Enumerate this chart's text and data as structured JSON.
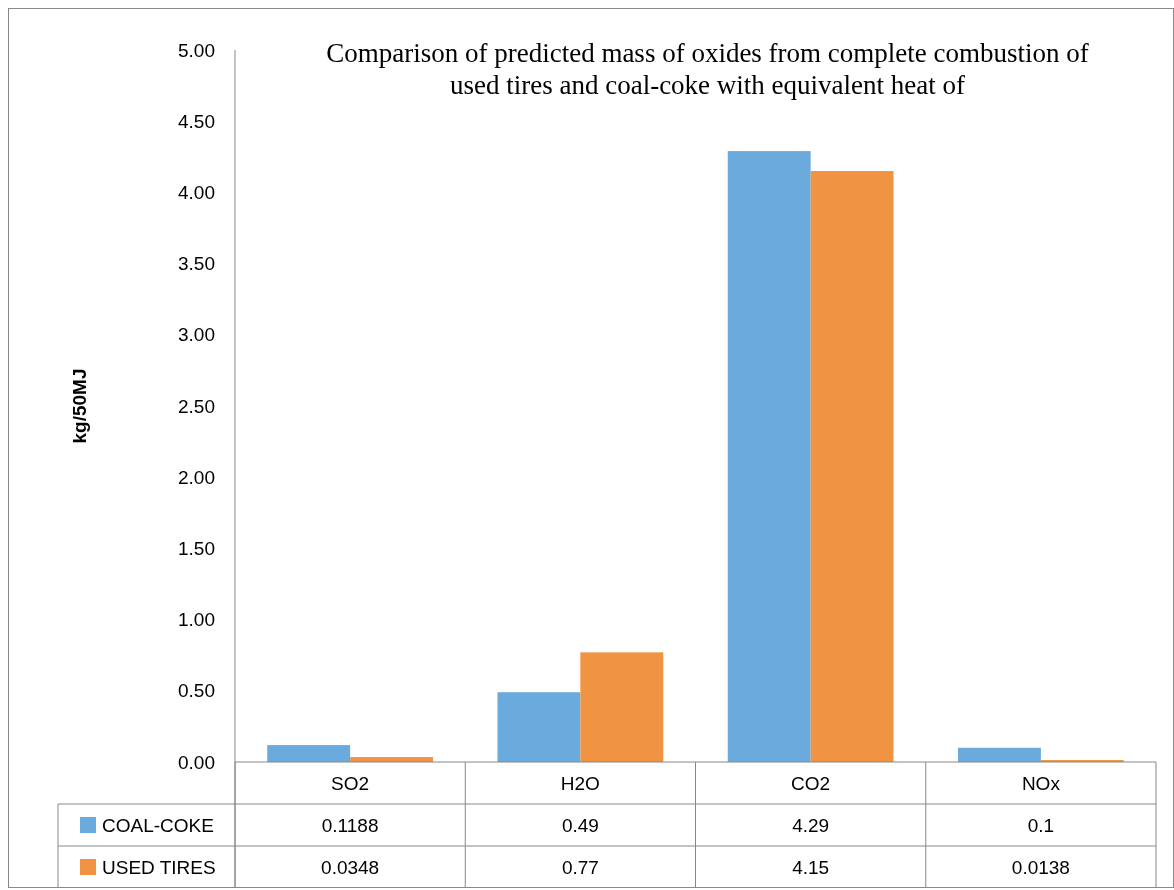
{
  "chart_data": {
    "type": "bar",
    "title": "Comparison of predicted mass of oxides from complete combustion of used tires and coal-coke with equivalent heat of",
    "ylabel": "kg/50MJ",
    "categories": [
      "SO2",
      "H2O",
      "CO2",
      "NOx"
    ],
    "series": [
      {
        "name": "COAL-COKE",
        "color": "#6aaadc",
        "values": [
          0.1188,
          0.49,
          4.29,
          0.1
        ]
      },
      {
        "name": "USED TIRES",
        "color": "#f09342",
        "values": [
          0.0348,
          0.77,
          4.15,
          0.0138
        ]
      }
    ],
    "ylim": [
      0,
      5
    ],
    "yticks": [
      {
        "value": 0,
        "label": "0.00"
      },
      {
        "value": 0.5,
        "label": "0.50"
      },
      {
        "value": 1,
        "label": "1.00"
      },
      {
        "value": 1.5,
        "label": "1.50"
      },
      {
        "value": 2,
        "label": "2.00"
      },
      {
        "value": 2.5,
        "label": "2.50"
      },
      {
        "value": 3,
        "label": "3.00"
      },
      {
        "value": 3.5,
        "label": "3.50"
      },
      {
        "value": 4,
        "label": "4.00"
      },
      {
        "value": 4.5,
        "label": "4.50"
      },
      {
        "value": 5,
        "label": "5.00"
      }
    ],
    "data_labels": true,
    "legend": "bottom"
  }
}
